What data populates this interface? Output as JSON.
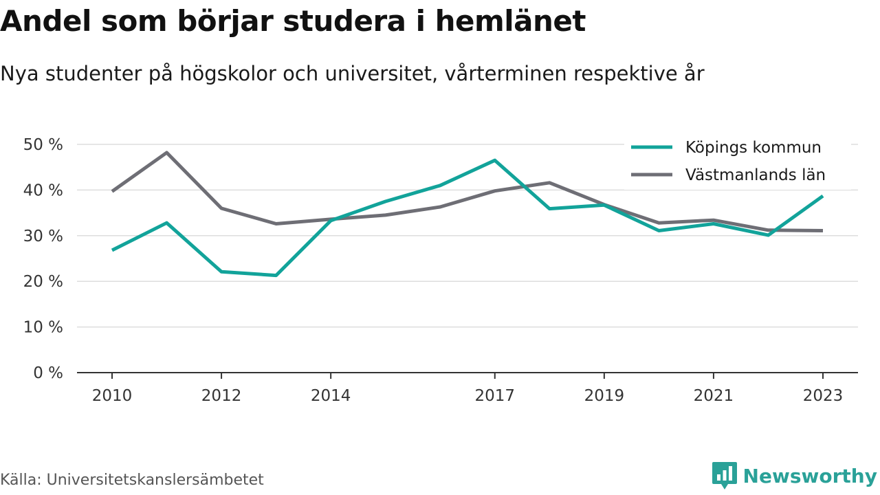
{
  "title": "Andel som börjar studera i hemlänet",
  "subtitle": "Nya studenter på högskolor och universitet, vårterminen respektive år",
  "source": "Källa: Universitetskanslersämbetet",
  "brand": {
    "name": "Newsworthy",
    "icon": "newsworthy-logo-icon",
    "color": "#2aa198"
  },
  "chart_data": {
    "type": "line",
    "x": [
      2010,
      2011,
      2012,
      2013,
      2014,
      2015,
      2016,
      2017,
      2018,
      2019,
      2020,
      2021,
      2022,
      2023
    ],
    "x_ticks": [
      "2010",
      "2012",
      "2014",
      "2017",
      "2019",
      "2021",
      "2023"
    ],
    "y_ticks": [
      "0 %",
      "10 %",
      "20 %",
      "30 %",
      "40 %",
      "50 %"
    ],
    "ylim": [
      0,
      50
    ],
    "unit": "%",
    "grid": true,
    "legend_position": "top-right",
    "series": [
      {
        "name": "Köpings kommun",
        "color": "#12a39a",
        "values": [
          26.8,
          32.8,
          22.1,
          21.3,
          33.3,
          37.5,
          41.0,
          46.5,
          35.9,
          36.7,
          31.1,
          32.6,
          30.1,
          38.7
        ]
      },
      {
        "name": "Västmanlands län",
        "color": "#6e6e75",
        "values": [
          39.7,
          48.2,
          36.0,
          32.6,
          33.6,
          34.5,
          36.3,
          39.8,
          41.6,
          36.8,
          32.8,
          33.4,
          31.2,
          31.1
        ]
      }
    ]
  }
}
